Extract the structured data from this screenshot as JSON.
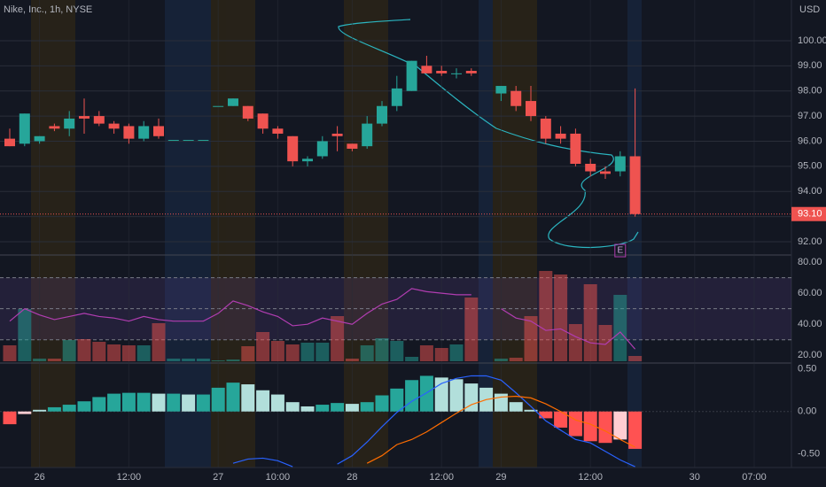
{
  "chart_data": {
    "type": "candlestick",
    "title": "Nike, Inc., 1h, NYSE",
    "currency": "USD",
    "earnings_marker": "E",
    "up_color": "#26a69a",
    "down_color": "#ef5350",
    "categories": [
      null,
      null,
      "26",
      null,
      null,
      null,
      null,
      null,
      "12:00",
      null,
      null,
      null,
      null,
      null,
      "27",
      null,
      null,
      null,
      "10:00",
      null,
      null,
      null,
      null,
      "28",
      null,
      null,
      null,
      null,
      null,
      "12:00",
      null,
      null,
      null,
      "29",
      null,
      null,
      null,
      null,
      null,
      "12:00",
      null,
      null,
      null,
      null,
      null,
      null,
      "30",
      null,
      null,
      null,
      "07:00"
    ],
    "open": [
      96.1,
      95.9,
      96.0,
      96.6,
      96.5,
      97.0,
      97.0,
      96.7,
      96.6,
      96.1,
      96.6,
      96.05,
      96.05,
      96.05,
      97.4,
      97.4,
      97.4,
      97.1,
      96.5,
      96.2,
      95.2,
      95.4,
      96.3,
      95.9,
      95.8,
      96.7,
      97.4,
      98.0,
      99.0,
      98.8,
      98.7,
      98.8,
      null,
      97.9,
      98.0,
      97.6,
      96.9,
      96.3,
      96.3,
      95.1,
      94.8,
      94.8,
      95.4,
      null,
      null,
      null,
      null,
      null,
      null,
      null,
      null
    ],
    "high": [
      96.5,
      97.1,
      96.2,
      96.7,
      97.2,
      97.7,
      97.2,
      96.8,
      96.7,
      96.8,
      96.9,
      96.05,
      96.05,
      96.05,
      97.4,
      97.7,
      97.4,
      97.1,
      96.6,
      96.2,
      95.4,
      96.2,
      96.6,
      95.9,
      97.0,
      97.6,
      98.6,
      99.2,
      99.4,
      99.0,
      98.9,
      98.9,
      null,
      98.2,
      98.2,
      98.2,
      97.0,
      96.6,
      96.5,
      95.3,
      95.0,
      95.6,
      98.1,
      null,
      null,
      null,
      null,
      null,
      null,
      null,
      null
    ],
    "low": [
      95.8,
      95.8,
      95.9,
      96.4,
      96.2,
      96.3,
      96.6,
      96.3,
      95.9,
      96.0,
      96.1,
      96.05,
      96.05,
      96.05,
      97.4,
      97.4,
      96.8,
      96.3,
      96.1,
      95.0,
      95.0,
      95.3,
      95.6,
      95.6,
      95.7,
      96.6,
      97.2,
      98.0,
      98.7,
      98.6,
      98.5,
      98.6,
      null,
      97.6,
      97.2,
      96.8,
      95.9,
      95.9,
      95.0,
      94.6,
      94.5,
      94.6,
      93.0,
      null,
      null,
      null,
      null,
      null,
      null,
      null,
      null
    ],
    "close": [
      95.8,
      97.1,
      96.2,
      96.5,
      96.9,
      96.9,
      96.7,
      96.5,
      96.1,
      96.6,
      96.2,
      96.05,
      96.05,
      96.05,
      97.4,
      97.7,
      96.9,
      96.5,
      96.3,
      95.2,
      95.3,
      96.0,
      96.2,
      95.7,
      96.7,
      97.4,
      98.1,
      99.2,
      98.7,
      98.7,
      98.7,
      98.7,
      null,
      98.2,
      97.4,
      97.0,
      96.1,
      96.1,
      95.1,
      94.8,
      94.7,
      95.4,
      93.1,
      null,
      null,
      null,
      null,
      null,
      null,
      null,
      null
    ],
    "volume": [
      18,
      59,
      3,
      3,
      24,
      25,
      22,
      19,
      18,
      18,
      43,
      3,
      3,
      3,
      1,
      2,
      17,
      33,
      23,
      19,
      21,
      21,
      51,
      3,
      18,
      26,
      23,
      5,
      18,
      15,
      19,
      72,
      null,
      3,
      4,
      51,
      102,
      98,
      42,
      87,
      41,
      75,
      6,
      null,
      null,
      null,
      null,
      null,
      null,
      null,
      null
    ],
    "ylim": [
      91.47,
      101.62
    ],
    "yticks": [
      {
        "value": 92,
        "label": "92.00"
      },
      {
        "value": 93,
        "label": "93.00"
      },
      {
        "value": 94,
        "label": "94.00"
      },
      {
        "value": 95,
        "label": "95.00"
      },
      {
        "value": 96,
        "label": "96.00"
      },
      {
        "value": 97,
        "label": "97.00"
      },
      {
        "value": 98,
        "label": "98.00"
      },
      {
        "value": 99,
        "label": "99.00"
      },
      {
        "value": 100,
        "label": "100.00"
      }
    ],
    "last_price": {
      "value": 93.1,
      "label": "93.10"
    },
    "rsi": {
      "color": "#b13db1",
      "values": [
        42,
        50,
        46,
        43,
        45,
        47,
        45,
        44,
        42,
        45,
        43,
        42,
        42,
        42,
        47,
        55,
        52,
        48,
        45,
        39,
        40,
        44,
        42,
        40,
        47,
        53,
        56,
        63,
        61,
        60,
        59,
        59,
        null,
        50,
        44,
        42,
        36,
        37,
        32,
        28,
        27,
        35,
        24,
        null,
        null,
        null,
        null,
        null,
        null,
        null,
        null
      ],
      "ylim": [
        15,
        84.6
      ],
      "bands": [
        30,
        50,
        70
      ],
      "yticks": [
        {
          "value": 20,
          "label": "20.00"
        },
        {
          "value": 40,
          "label": "40.00"
        },
        {
          "value": 60,
          "label": "60.00"
        },
        {
          "value": 80,
          "label": "80.00"
        }
      ]
    },
    "macd": {
      "ylim": [
        -0.66,
        0.55
      ],
      "yticks": [
        {
          "value": 0.5,
          "label": "0.50"
        },
        {
          "value": 0,
          "label": "0.00"
        },
        {
          "value": -0.5,
          "label": "-0.50"
        }
      ],
      "histogram": {
        "colors": [
          "#26a69a",
          "#b2dfdb",
          "#ff5252",
          "#ffcdd2"
        ],
        "values": [
          -0.15,
          -0.03,
          0.02,
          0.05,
          0.08,
          0.12,
          0.17,
          0.21,
          0.22,
          0.22,
          0.21,
          0.21,
          0.2,
          0.2,
          0.28,
          0.34,
          0.32,
          0.25,
          0.2,
          0.11,
          0.06,
          0.08,
          0.1,
          0.09,
          0.11,
          0.19,
          0.27,
          0.37,
          0.42,
          0.4,
          0.38,
          0.33,
          0.28,
          0.21,
          0.11,
          0.02,
          -0.08,
          -0.19,
          -0.29,
          -0.35,
          -0.37,
          -0.33,
          -0.44,
          null,
          null,
          null,
          null,
          null,
          null,
          null,
          null
        ]
      },
      "series": [
        {
          "color": "#2962ff",
          "values": [
            null,
            null,
            null,
            null,
            null,
            null,
            null,
            null,
            null,
            null,
            null,
            null,
            null,
            null,
            null,
            -0.61,
            -0.56,
            -0.55,
            -0.58,
            -0.65,
            null,
            null,
            -0.62,
            -0.52,
            -0.36,
            -0.18,
            -0.01,
            0.12,
            0.22,
            0.33,
            0.39,
            0.42,
            0.42,
            0.37,
            0.22,
            0.06,
            -0.11,
            -0.22,
            -0.33,
            -0.37,
            -0.47,
            -0.57,
            -0.65,
            null,
            null,
            null,
            null,
            null,
            null,
            null,
            null
          ]
        },
        {
          "color": "#ff6d00",
          "values": [
            null,
            null,
            null,
            null,
            null,
            null,
            null,
            null,
            null,
            null,
            null,
            null,
            null,
            null,
            null,
            null,
            null,
            null,
            null,
            null,
            null,
            null,
            null,
            null,
            -0.61,
            -0.52,
            -0.39,
            -0.33,
            -0.24,
            -0.13,
            -0.02,
            0.08,
            0.14,
            0.17,
            0.18,
            0.16,
            0.09,
            0.0,
            -0.1,
            -0.15,
            -0.23,
            -0.33,
            -0.42,
            null,
            null,
            null,
            null,
            null,
            null,
            null,
            null
          ]
        }
      ]
    }
  }
}
